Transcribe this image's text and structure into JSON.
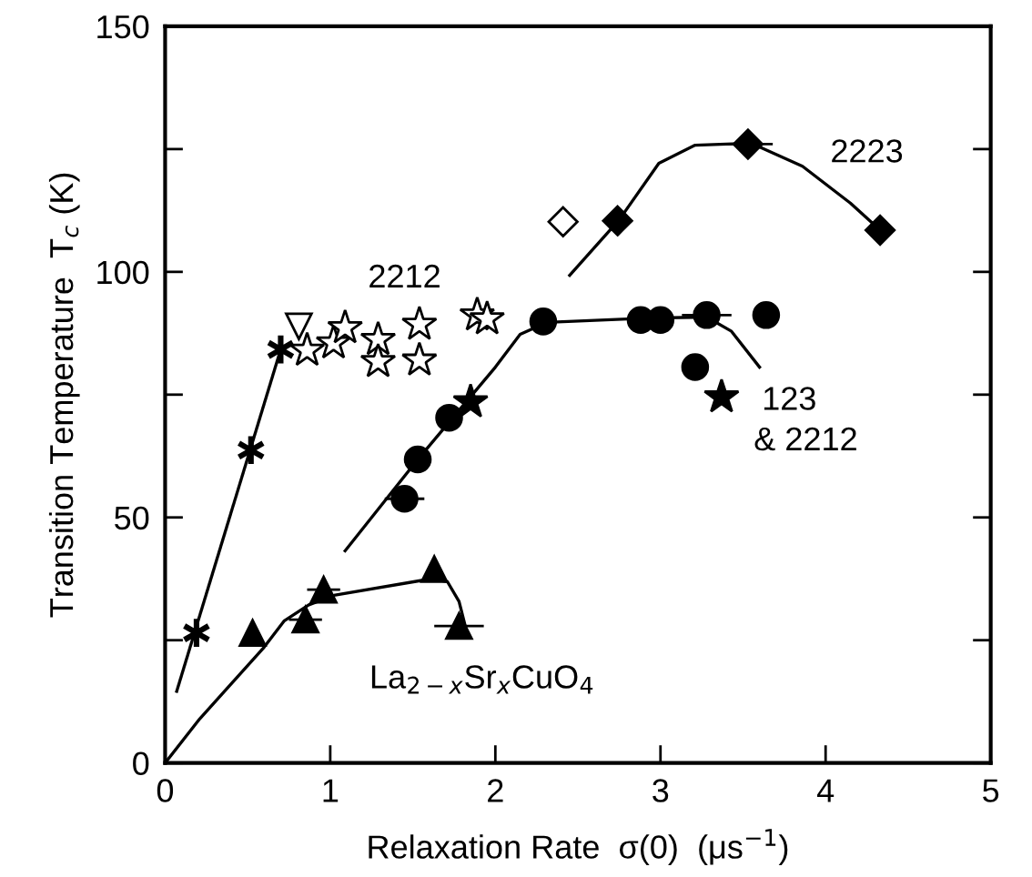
{
  "chart_data": {
    "type": "scatter",
    "xlabel": "Relaxation Rate  σ(0)  (μs$^{−1}$)",
    "ylabel": "Transition Temperature  T$_{c}$ (K)",
    "xlim": [
      0,
      5
    ],
    "xticks": [
      0,
      1,
      2,
      3,
      4,
      5
    ],
    "ylim": [
      0,
      150
    ],
    "yticks": [
      0,
      {
        "value": 25,
        "label": null
      },
      50,
      {
        "value": 75,
        "label": null
      },
      100,
      {
        "value": 125,
        "label": null
      },
      150
    ],
    "grid": false,
    "series": [
      {
        "type": "line",
        "color": "#000000",
        "x": [
          0.07,
          0.7
        ],
        "values": [
          14.6,
          84.2
        ]
      },
      {
        "marker": "cross",
        "color": "#000000",
        "x": [
          0.19,
          0.52,
          0.7
        ],
        "values": [
          26.5,
          63.7,
          84.2
        ]
      },
      {
        "marker": "triangle_down",
        "color": "#ffffff",
        "x": [
          0.81
        ],
        "values": [
          88.9
        ]
      },
      {
        "marker": "star",
        "color": "#ffffff",
        "x": [
          0.86,
          1.02,
          1.09,
          1.29,
          1.29,
          1.54,
          1.54,
          1.89,
          1.95
        ],
        "values": [
          84,
          85.5,
          88.6,
          86.2,
          81.7,
          89.3,
          82,
          91.2,
          90.4
        ]
      },
      {
        "type": "line",
        "color": "#000000",
        "x": [
          0,
          0.21,
          0.6,
          0.72,
          0.87,
          1.03,
          1.61,
          1.71,
          1.78,
          1.82
        ],
        "values": [
          0,
          9,
          23.6,
          28.9,
          32.2,
          34.2,
          37.5,
          36.9,
          32.9,
          27.6
        ]
      },
      {
        "marker": "triangle",
        "color": "#000000",
        "x": [
          0.53,
          0.85,
          0.96,
          1.63,
          1.78
        ],
        "values": [
          26.5,
          29.2,
          35.3,
          39.5,
          27.9
        ],
        "xerrors": [
          null,
          0.1,
          0.1,
          null,
          0.15
        ]
      },
      {
        "type": "line",
        "color": "#000000",
        "x": [
          1.09,
          1.53,
          2.0,
          2.15,
          2.31,
          2.93,
          3.28,
          3.43,
          3.6
        ],
        "values": [
          43.2,
          61.8,
          80.6,
          87.3,
          89.7,
          90.6,
          90.8,
          87.9,
          80.6
        ]
      },
      {
        "marker": "circle",
        "color": "#000000",
        "x": [
          1.45,
          1.53,
          1.72,
          2.29,
          2.88,
          3.0,
          3.28,
          3.64,
          3.21
        ],
        "values": [
          53.8,
          61.8,
          70.3,
          89.9,
          90.2,
          90.2,
          91.2,
          91.2,
          80.6
        ],
        "xerrors": [
          0.12,
          null,
          null,
          null,
          null,
          null,
          0.15,
          null,
          null
        ]
      },
      {
        "marker": "star",
        "color": "#000000",
        "x": [
          1.85,
          3.37
        ],
        "values": [
          73.5,
          74.5
        ]
      },
      {
        "type": "line",
        "color": "#000000",
        "x": [
          2.45,
          2.75,
          2.99,
          3.21,
          3.55,
          3.86,
          4.15,
          4.33
        ],
        "values": [
          99.3,
          110.6,
          122.1,
          125.8,
          126.2,
          121.5,
          114,
          108.5
        ]
      },
      {
        "marker": "diamond",
        "color": "#ffffff",
        "x": [
          2.41
        ],
        "values": [
          110.2
        ]
      },
      {
        "marker": "diamond",
        "color": "#000000",
        "x": [
          2.74,
          3.53,
          4.33
        ],
        "values": [
          110.4,
          126,
          108.5
        ],
        "xerrors": [
          null,
          0.15,
          null
        ]
      }
    ],
    "annotations": [
      "2212",
      "2223",
      "123",
      "& 2212",
      "La$_{2−x}$Sr$_{x}$CuO$_{4}$"
    ]
  }
}
